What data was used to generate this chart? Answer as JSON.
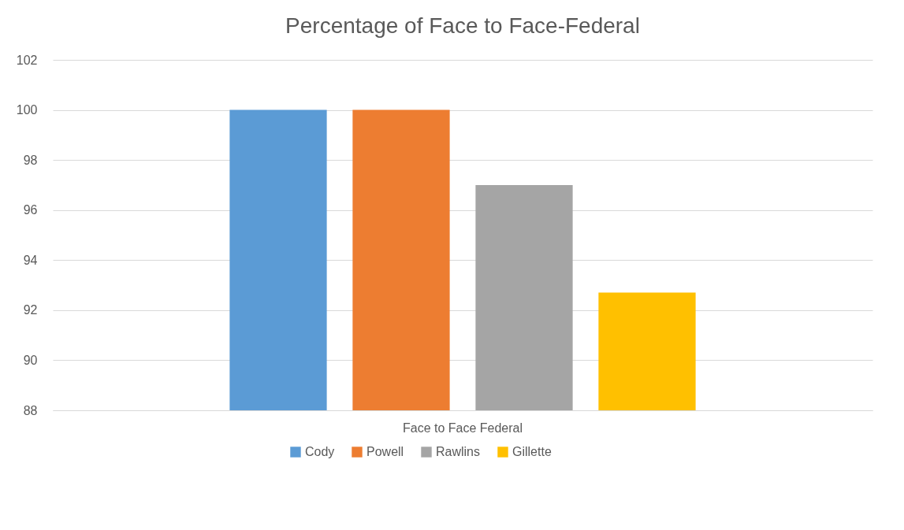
{
  "chart_data": {
    "type": "bar",
    "title": "Percentage of Face to Face-Federal",
    "categories": [
      "Face to Face Federal"
    ],
    "series": [
      {
        "name": "Cody",
        "color": "#5b9bd5",
        "values": [
          100
        ]
      },
      {
        "name": "Powell",
        "color": "#ed7d31",
        "values": [
          100
        ]
      },
      {
        "name": "Rawlins",
        "color": "#a5a5a5",
        "values": [
          97
        ]
      },
      {
        "name": "Gillette",
        "color": "#ffc000",
        "values": [
          92.7
        ]
      }
    ],
    "ylim": [
      88,
      102
    ],
    "yticks": [
      88,
      90,
      92,
      94,
      96,
      98,
      100,
      102
    ],
    "grid": "y",
    "legend": "bottom"
  }
}
